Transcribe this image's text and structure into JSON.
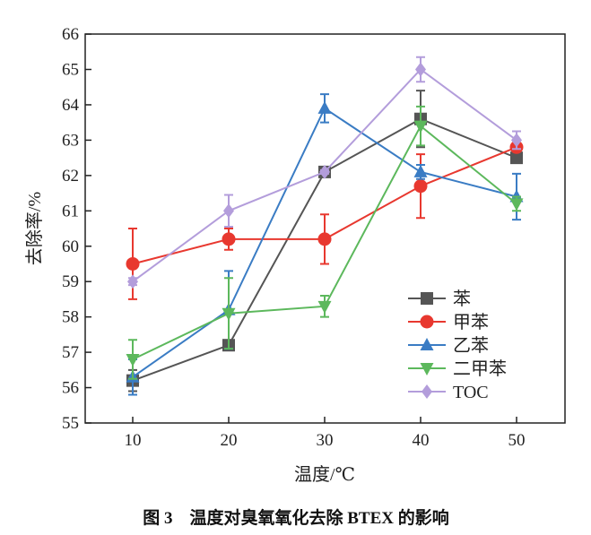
{
  "chart_data": {
    "type": "line",
    "caption": "图 3　温度对臭氧氧化去除 BTEX 的影响",
    "xlabel": "温度/℃",
    "ylabel": "去除率/%",
    "x": [
      10,
      20,
      30,
      40,
      50
    ],
    "xlim": [
      5,
      55
    ],
    "ylim": [
      55,
      66
    ],
    "xticks": [
      "10",
      "20",
      "30",
      "40",
      "50"
    ],
    "yticks": [
      "55",
      "56",
      "57",
      "58",
      "59",
      "60",
      "61",
      "62",
      "63",
      "64",
      "65",
      "66"
    ],
    "grid": false,
    "legend_position": "lower-right",
    "series": [
      {
        "name": "苯",
        "color": "#555555",
        "marker": "square",
        "values": [
          56.2,
          57.2,
          62.1,
          63.6,
          62.5
        ],
        "errors": [
          0.3,
          0.1,
          0.1,
          0.8,
          0.1
        ]
      },
      {
        "name": "甲苯",
        "color": "#e8382f",
        "marker": "circle",
        "values": [
          59.5,
          60.2,
          60.2,
          61.7,
          62.8
        ],
        "errors": [
          1.0,
          0.3,
          0.7,
          0.9,
          0.1
        ]
      },
      {
        "name": "乙苯",
        "color": "#3a7cc4",
        "marker": "triangle-up",
        "values": [
          56.3,
          58.2,
          63.9,
          62.1,
          61.4
        ],
        "errors": [
          0.5,
          1.1,
          0.4,
          0.2,
          0.65
        ]
      },
      {
        "name": "二甲苯",
        "color": "#5cb85c",
        "marker": "triangle-down",
        "values": [
          56.8,
          58.1,
          58.3,
          63.4,
          61.2
        ],
        "errors": [
          0.55,
          1.0,
          0.3,
          0.55,
          0.2
        ]
      },
      {
        "name": "TOC",
        "color": "#b39ddb",
        "marker": "diamond",
        "values": [
          59.0,
          61.0,
          62.1,
          65.0,
          63.0
        ],
        "errors": [
          0.1,
          0.45,
          0.05,
          0.35,
          0.25
        ]
      }
    ]
  }
}
